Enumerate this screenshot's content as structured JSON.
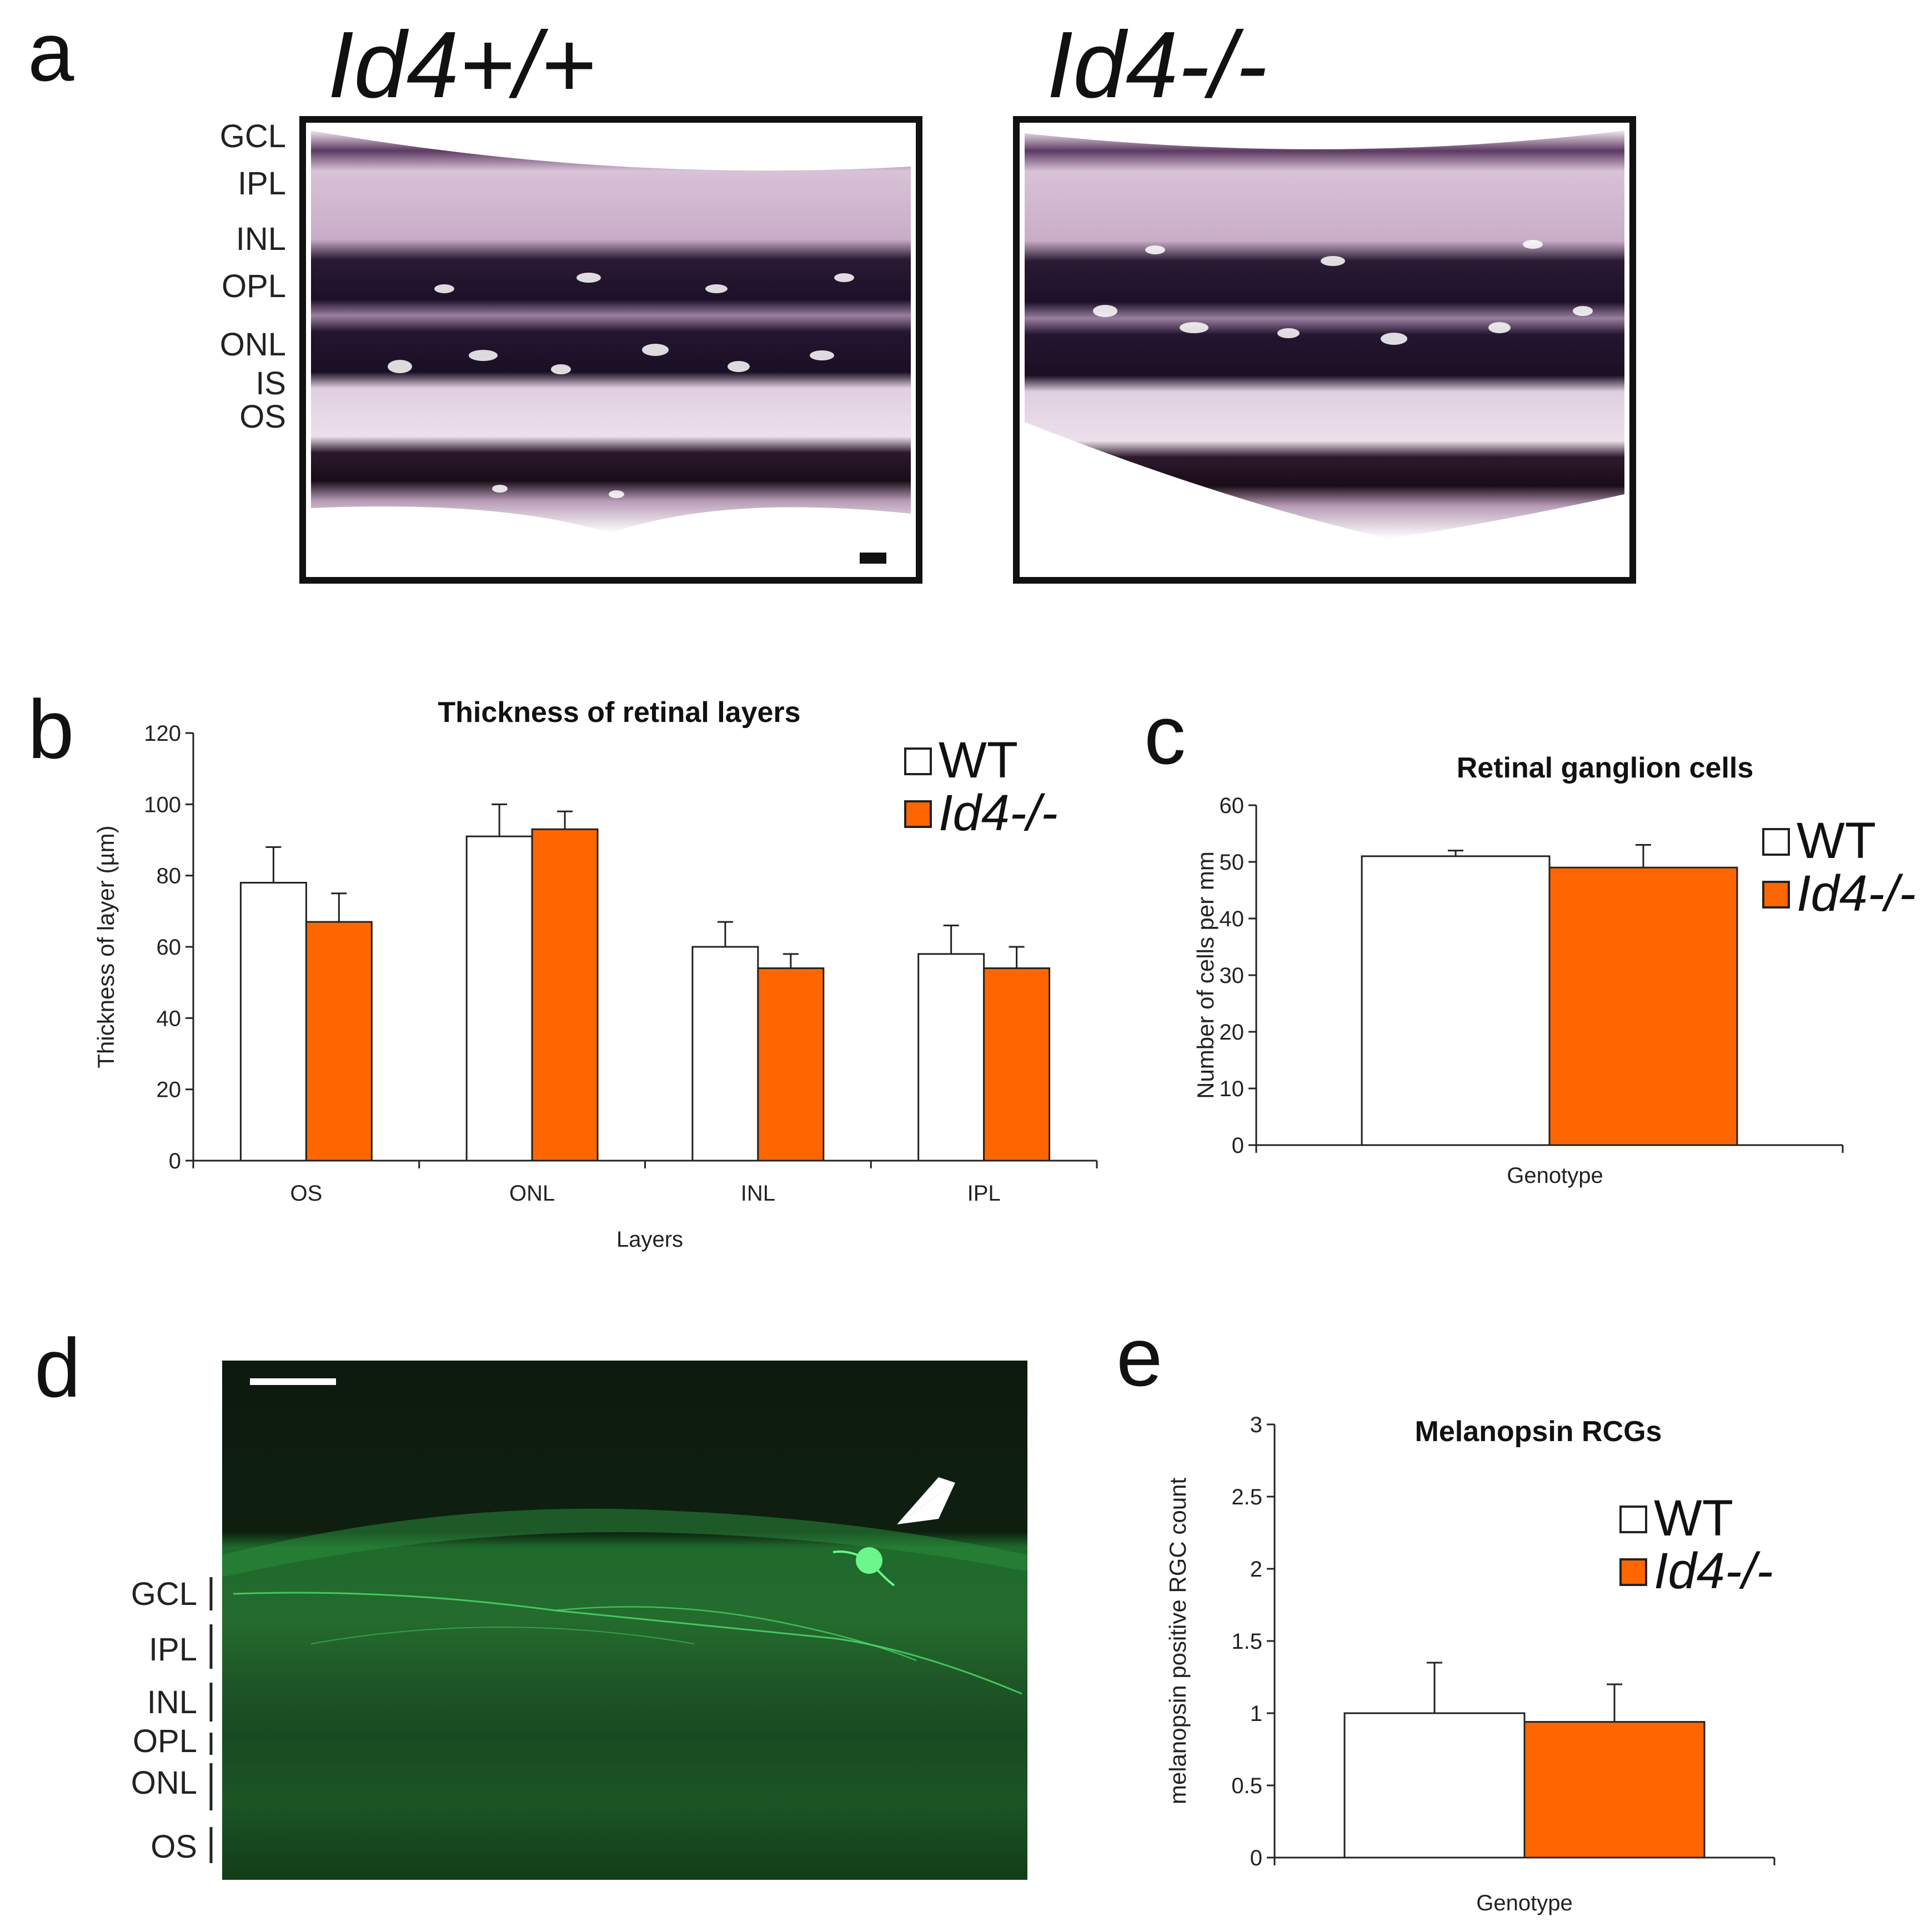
{
  "figure": {
    "panel_labels": [
      "a",
      "b",
      "c",
      "d",
      "e"
    ],
    "panel_a": {
      "genotype_left": "Id4+/+",
      "genotype_right": "Id4-/-",
      "layer_labels": [
        "GCL",
        "IPL",
        "INL",
        "OPL",
        "ONL",
        "IS",
        "OS"
      ]
    },
    "panel_d": {
      "layer_labels": [
        "GCL",
        "IPL",
        "INL",
        "OPL",
        "ONL",
        "OS"
      ]
    }
  },
  "colors": {
    "wt": "#ffffff",
    "ko": "#ff6600",
    "axis": "#222222",
    "fluor_bg": "#0b1a0e",
    "fluor_green": "#2fbf4a"
  },
  "chart_data": [
    {
      "panel": "b",
      "type": "bar",
      "title": "Thickness of retinal layers",
      "xlabel": "Layers",
      "ylabel": "Thickness of layer (µm)",
      "ylim": [
        0,
        120
      ],
      "yticks": [
        0,
        20,
        40,
        60,
        80,
        100,
        120
      ],
      "legend_position": "top-right",
      "categories": [
        "OS",
        "ONL",
        "INL",
        "IPL"
      ],
      "series": [
        {
          "name": "WT",
          "values": [
            78,
            91,
            60,
            58
          ],
          "errors": [
            10,
            9,
            7,
            8
          ]
        },
        {
          "name": "Id4-/-",
          "values": [
            67,
            93,
            54,
            54
          ],
          "errors": [
            8,
            5,
            4,
            6
          ]
        }
      ]
    },
    {
      "panel": "c",
      "type": "bar",
      "title": "Retinal ganglion cells",
      "xlabel": "Genotype",
      "ylabel": "Number of cells per mm",
      "ylim": [
        0,
        60
      ],
      "yticks": [
        0,
        10,
        20,
        30,
        40,
        50,
        60
      ],
      "legend_position": "top-right",
      "categories": [
        ""
      ],
      "series": [
        {
          "name": "WT",
          "values": [
            51
          ],
          "errors": [
            1
          ]
        },
        {
          "name": "Id4-/-",
          "values": [
            49
          ],
          "errors": [
            4
          ]
        }
      ]
    },
    {
      "panel": "e",
      "type": "bar",
      "title": "Melanopsin RCGs",
      "xlabel": "Genotype",
      "ylabel": "melanopsin positive RGC count",
      "ylim": [
        0,
        3
      ],
      "yticks": [
        0,
        0.5,
        1,
        1.5,
        2,
        2.5,
        3
      ],
      "legend_position": "top-right",
      "categories": [
        ""
      ],
      "series": [
        {
          "name": "WT",
          "values": [
            1.0
          ],
          "errors": [
            0.35
          ]
        },
        {
          "name": "Id4-/-",
          "values": [
            0.94
          ],
          "errors": [
            0.26
          ]
        }
      ]
    }
  ]
}
